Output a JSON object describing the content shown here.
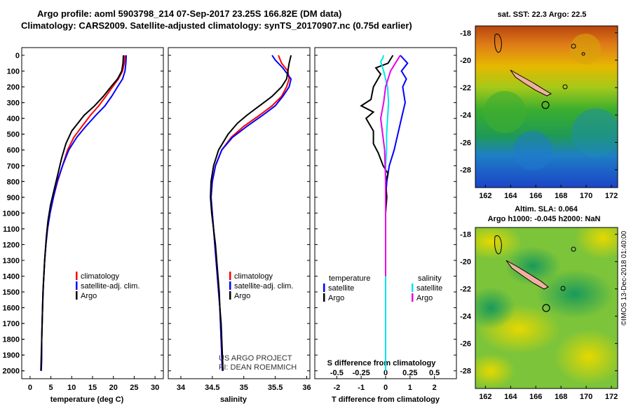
{
  "header": {
    "title1": "Argo profile: aoml 5903798_214 07-Sep-2017 23.25S 166.82E (DM data)",
    "title2": "Climatology: CARS2009. Satellite-adjusted climatology: synTS_20170907.nc (0.75d earlier)"
  },
  "colors": {
    "climatology": "#ff0000",
    "satellite": "#0000ff",
    "argo": "#000000",
    "sat_sal": "#00e5ee",
    "argo_sal": "#e800e8"
  },
  "depth_ticks": [
    "0",
    "100",
    "200",
    "300",
    "400",
    "500",
    "600",
    "700",
    "800",
    "900",
    "1000",
    "1100",
    "1200",
    "1300",
    "1400",
    "1500",
    "1600",
    "1700",
    "1800",
    "1900",
    "2000"
  ],
  "chart_data": [
    {
      "type": "line",
      "xlabel": "temperature (deg C)",
      "xticks": [
        "0",
        "5",
        "10",
        "15",
        "20",
        "25",
        "30"
      ],
      "xlim": [
        -2,
        32
      ],
      "ylim": [
        2050,
        0
      ],
      "legend": [
        "climatology",
        "satellite-adj. clim.",
        "Argo"
      ],
      "legend_colors": [
        "#ff0000",
        "#0000ff",
        "#000000"
      ],
      "series": [
        {
          "name": "climatology",
          "color": "#ff0000",
          "points": [
            [
              22.8,
              0
            ],
            [
              22.6,
              50
            ],
            [
              22.2,
              100
            ],
            [
              21.2,
              150
            ],
            [
              19.8,
              200
            ],
            [
              18.2,
              260
            ],
            [
              16.5,
              320
            ],
            [
              14.5,
              380
            ],
            [
              12.5,
              450
            ],
            [
              10.5,
              520
            ],
            [
              9.0,
              600
            ],
            [
              7.8,
              700
            ],
            [
              6.6,
              800
            ],
            [
              5.6,
              900
            ],
            [
              4.8,
              1000
            ],
            [
              4.2,
              1100
            ],
            [
              3.8,
              1200
            ],
            [
              3.5,
              1300
            ],
            [
              3.3,
              1400
            ],
            [
              3.1,
              1500
            ],
            [
              3.0,
              1600
            ],
            [
              2.9,
              1700
            ],
            [
              2.8,
              1800
            ],
            [
              2.8,
              1900
            ],
            [
              2.7,
              2000
            ]
          ]
        },
        {
          "name": "satellite-adj. clim.",
          "color": "#0000ff",
          "points": [
            [
              23.1,
              0
            ],
            [
              23.0,
              50
            ],
            [
              22.8,
              100
            ],
            [
              22.2,
              150
            ],
            [
              21.0,
              200
            ],
            [
              19.6,
              260
            ],
            [
              18.0,
              320
            ],
            [
              15.8,
              380
            ],
            [
              13.4,
              450
            ],
            [
              11.2,
              520
            ],
            [
              9.3,
              600
            ],
            [
              7.8,
              700
            ],
            [
              6.5,
              800
            ],
            [
              5.6,
              900
            ],
            [
              4.8,
              1000
            ],
            [
              4.2,
              1100
            ],
            [
              3.8,
              1200
            ],
            [
              3.5,
              1300
            ],
            [
              3.3,
              1400
            ],
            [
              3.1,
              1500
            ],
            [
              3.0,
              1600
            ],
            [
              2.9,
              1700
            ],
            [
              2.8,
              1800
            ],
            [
              2.8,
              1900
            ],
            [
              2.7,
              2000
            ]
          ]
        },
        {
          "name": "Argo",
          "color": "#000000",
          "points": [
            [
              22.4,
              0
            ],
            [
              22.3,
              50
            ],
            [
              22.0,
              100
            ],
            [
              21.0,
              150
            ],
            [
              19.4,
              200
            ],
            [
              17.6,
              260
            ],
            [
              15.5,
              320
            ],
            [
              13.0,
              380
            ],
            [
              11.5,
              430
            ],
            [
              10.0,
              480
            ],
            [
              8.6,
              560
            ],
            [
              7.6,
              650
            ],
            [
              6.7,
              750
            ],
            [
              5.8,
              850
            ],
            [
              4.9,
              950
            ],
            [
              4.3,
              1050
            ],
            [
              3.9,
              1150
            ],
            [
              3.5,
              1300
            ],
            [
              3.2,
              1450
            ],
            [
              3.0,
              1600
            ],
            [
              2.8,
              1800
            ],
            [
              2.7,
              1900
            ],
            [
              2.6,
              2000
            ]
          ]
        }
      ]
    },
    {
      "type": "line",
      "xlabel": "salinity",
      "xticks": [
        "34",
        "34.5",
        "35",
        "35.5",
        "36"
      ],
      "xlim": [
        33.8,
        36.05
      ],
      "ylim": [
        2050,
        0
      ],
      "legend": [
        "climatology",
        "satellite-adj. clim.",
        "Argo"
      ],
      "legend_colors": [
        "#ff0000",
        "#0000ff",
        "#000000"
      ],
      "annotations": [
        "US ARGO PROJECT",
        "PI: DEAN ROEMMICH"
      ],
      "series": [
        {
          "name": "climatology",
          "color": "#ff0000",
          "points": [
            [
              35.55,
              0
            ],
            [
              35.6,
              50
            ],
            [
              35.7,
              100
            ],
            [
              35.72,
              150
            ],
            [
              35.68,
              200
            ],
            [
              35.6,
              260
            ],
            [
              35.45,
              320
            ],
            [
              35.25,
              380
            ],
            [
              35.0,
              450
            ],
            [
              34.8,
              520
            ],
            [
              34.65,
              600
            ],
            [
              34.55,
              700
            ],
            [
              34.5,
              800
            ],
            [
              34.48,
              900
            ],
            [
              34.5,
              1000
            ],
            [
              34.52,
              1100
            ],
            [
              34.54,
              1200
            ],
            [
              34.56,
              1300
            ],
            [
              34.58,
              1400
            ],
            [
              34.6,
              1500
            ],
            [
              34.62,
              1600
            ],
            [
              34.63,
              1700
            ],
            [
              34.64,
              1800
            ],
            [
              34.65,
              1900
            ],
            [
              34.66,
              2000
            ]
          ]
        },
        {
          "name": "satellite-adj. clim.",
          "color": "#0000ff",
          "points": [
            [
              35.45,
              0
            ],
            [
              35.5,
              30
            ],
            [
              35.62,
              80
            ],
            [
              35.75,
              150
            ],
            [
              35.72,
              200
            ],
            [
              35.62,
              260
            ],
            [
              35.5,
              320
            ],
            [
              35.3,
              380
            ],
            [
              35.05,
              450
            ],
            [
              34.82,
              520
            ],
            [
              34.65,
              600
            ],
            [
              34.55,
              700
            ],
            [
              34.5,
              800
            ],
            [
              34.48,
              900
            ],
            [
              34.5,
              1000
            ],
            [
              34.52,
              1100
            ],
            [
              34.54,
              1200
            ],
            [
              34.56,
              1300
            ],
            [
              34.58,
              1400
            ],
            [
              34.6,
              1500
            ],
            [
              34.62,
              1600
            ],
            [
              34.63,
              1700
            ],
            [
              34.64,
              1800
            ],
            [
              34.65,
              1900
            ],
            [
              34.66,
              2000
            ]
          ]
        },
        {
          "name": "Argo",
          "color": "#000000",
          "points": [
            [
              35.75,
              0
            ],
            [
              35.72,
              50
            ],
            [
              35.7,
              100
            ],
            [
              35.68,
              150
            ],
            [
              35.6,
              200
            ],
            [
              35.45,
              260
            ],
            [
              35.25,
              320
            ],
            [
              35.05,
              380
            ],
            [
              34.9,
              430
            ],
            [
              34.75,
              500
            ],
            [
              34.6,
              600
            ],
            [
              34.52,
              700
            ],
            [
              34.48,
              800
            ],
            [
              34.47,
              900
            ],
            [
              34.49,
              1000
            ],
            [
              34.52,
              1100
            ],
            [
              34.55,
              1200
            ],
            [
              34.57,
              1300
            ],
            [
              34.59,
              1400
            ],
            [
              34.61,
              1500
            ],
            [
              34.62,
              1600
            ],
            [
              34.64,
              1700
            ],
            [
              34.65,
              1800
            ],
            [
              34.66,
              1900
            ],
            [
              34.67,
              2000
            ]
          ]
        }
      ]
    },
    {
      "type": "line",
      "xlabel": "T difference from climatology",
      "xticks": [
        "-2",
        "-1",
        "0",
        "1",
        "2"
      ],
      "xlim": [
        -2.9,
        2.9
      ],
      "ylim": [
        2050,
        0
      ],
      "s_label": "S difference from climatology",
      "s_ticks": [
        "-0.5",
        "-0.25",
        "0",
        "0.25",
        "0.5"
      ],
      "s_lim": [
        -0.725,
        0.725
      ],
      "legend_left": [
        "temperature",
        "satellite",
        "Argo"
      ],
      "legend_left_colors": [
        "#000000",
        "#0000ff",
        "#000000"
      ],
      "legend_right": [
        "salinity",
        "satellite",
        "Argo"
      ],
      "legend_right_colors": [
        "#000000",
        "#00e5ee",
        "#e800e8"
      ],
      "series": [
        {
          "name": "T satellite",
          "axis": "T",
          "color": "#0000ff",
          "points": [
            [
              0.6,
              0
            ],
            [
              0.9,
              50
            ],
            [
              0.65,
              100
            ],
            [
              0.85,
              150
            ],
            [
              0.7,
              200
            ],
            [
              0.8,
              300
            ],
            [
              0.65,
              400
            ],
            [
              0.5,
              500
            ],
            [
              0.35,
              600
            ],
            [
              0.15,
              700
            ],
            [
              0.05,
              800
            ],
            [
              0.0,
              900
            ],
            [
              0.0,
              1100
            ]
          ]
        },
        {
          "name": "T Argo",
          "axis": "T",
          "color": "#000000",
          "points": [
            [
              0.3,
              0
            ],
            [
              0.1,
              50
            ],
            [
              -0.4,
              80
            ],
            [
              -0.2,
              120
            ],
            [
              -0.5,
              200
            ],
            [
              -0.6,
              280
            ],
            [
              -1.0,
              320
            ],
            [
              -0.5,
              360
            ],
            [
              -0.8,
              400
            ],
            [
              -0.5,
              480
            ],
            [
              -0.5,
              560
            ],
            [
              -0.3,
              620
            ],
            [
              -0.1,
              700
            ],
            [
              0.1,
              750
            ],
            [
              0.0,
              800
            ],
            [
              0.05,
              900
            ],
            [
              0.0,
              1000
            ],
            [
              0.0,
              1100
            ]
          ]
        },
        {
          "name": "S satellite",
          "axis": "S",
          "color": "#00e5ee",
          "points": [
            [
              -0.02,
              0
            ],
            [
              -0.03,
              20
            ],
            [
              -0.05,
              40
            ],
            [
              -0.02,
              100
            ],
            [
              0.02,
              200
            ],
            [
              0.03,
              300
            ],
            [
              0.02,
              400
            ],
            [
              0.01,
              500
            ],
            [
              0.01,
              600
            ],
            [
              0.0,
              700
            ],
            [
              0.0,
              1000
            ],
            [
              0.0,
              1500
            ],
            [
              0.0,
              2000
            ]
          ]
        },
        {
          "name": "S Argo",
          "axis": "S",
          "color": "#e800e8",
          "points": [
            [
              0.15,
              0
            ],
            [
              0.1,
              50
            ],
            [
              0.05,
              100
            ],
            [
              0.0,
              200
            ],
            [
              -0.02,
              300
            ],
            [
              -0.05,
              400
            ],
            [
              -0.03,
              500
            ],
            [
              -0.01,
              600
            ],
            [
              0.0,
              800
            ],
            [
              0.0,
              1000
            ],
            [
              0.0,
              1400
            ]
          ]
        }
      ]
    }
  ],
  "maps": {
    "top": {
      "title": "sat. SST: 22.3 Argo: 22.5",
      "lat_ticks": [
        "-18",
        "-20",
        "-22",
        "-24",
        "-26",
        "-28"
      ],
      "lon_ticks": [
        "162",
        "164",
        "166",
        "168",
        "170",
        "172"
      ]
    },
    "bottom": {
      "title1": "Altim. SLA: 0.064",
      "title2": "Argo h1000: -0.045 h2000: NaN",
      "lat_ticks": [
        "-18",
        "-20",
        "-22",
        "-24",
        "-26",
        "-28"
      ],
      "lon_ticks": [
        "162",
        "164",
        "166",
        "168",
        "170",
        "172"
      ]
    }
  },
  "footer": {
    "credit": "©IMOS 13-Dec-2018 01:40:00"
  }
}
